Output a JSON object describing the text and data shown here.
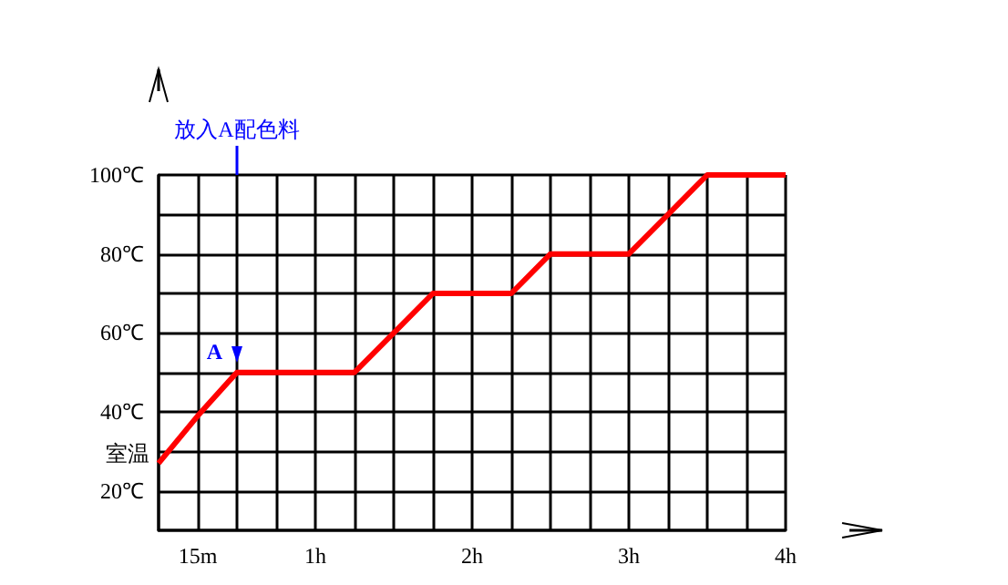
{
  "chart_data": {
    "type": "line",
    "categories": [
      null,
      "15m",
      null,
      null,
      "1h",
      null,
      null,
      null,
      "2h",
      null,
      null,
      null,
      "3h",
      null,
      null,
      null,
      "4h"
    ],
    "series": [
      {
        "color": "#ff0000",
        "values": [
          27,
          39,
          50,
          50,
          50,
          50,
          60,
          70,
          70,
          70,
          80,
          80,
          80,
          90,
          100,
          100,
          100
        ]
      }
    ],
    "ylim": [
      10,
      100
    ],
    "yticks": [
      {
        "value": 10,
        "label": null
      },
      {
        "value": 20,
        "label": "20℃"
      },
      {
        "value": 30,
        "label": null
      },
      {
        "value": 40,
        "label": "40℃"
      },
      {
        "value": 50,
        "label": null
      },
      {
        "value": 60,
        "label": "60℃"
      },
      {
        "value": 70,
        "label": null
      },
      {
        "value": 80,
        "label": "80℃"
      },
      {
        "value": 90,
        "label": null
      },
      {
        "value": 100,
        "label": "100℃"
      }
    ],
    "annotations": [
      "室温",
      "A",
      "放入A配色料"
    ],
    "grid": true,
    "marker": "none",
    "line_style": "solid"
  }
}
